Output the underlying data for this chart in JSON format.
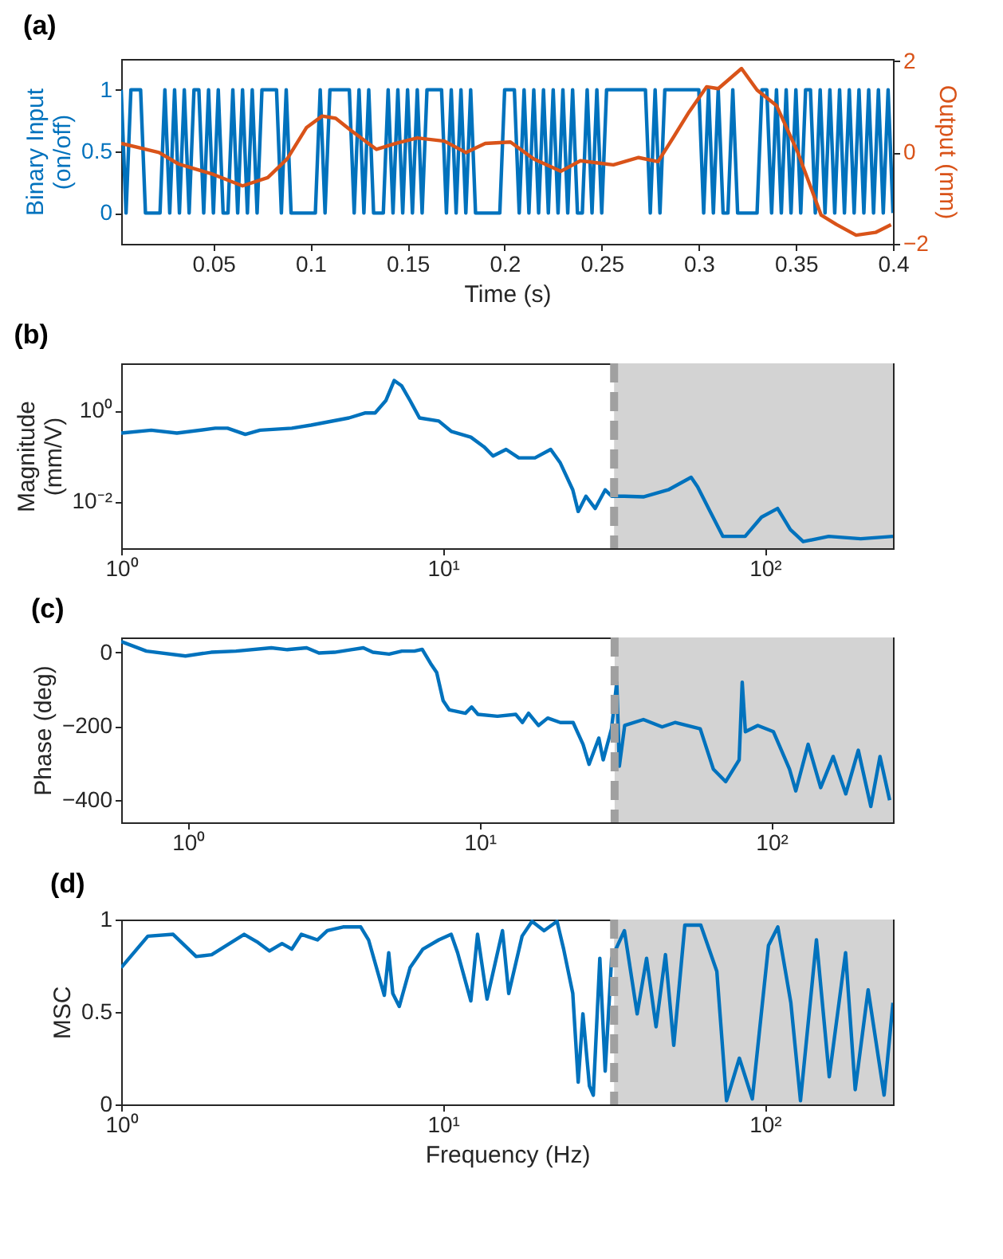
{
  "chart_data": [
    {
      "type": "line",
      "title": "(a)",
      "xlabel": "Time (s)",
      "ylabel": "Binary Input (on/off)",
      "y2label": "Output (mm)",
      "xlim": [
        0.0025,
        0.4
      ],
      "xticks": [
        0.05,
        0.1,
        0.15,
        0.2,
        0.25,
        0.3,
        0.35,
        0.4
      ],
      "ylim": [
        -0.25,
        1.25
      ],
      "yticks": [
        0,
        0.5,
        1
      ],
      "y2lim": [
        -2,
        2.05
      ],
      "y2ticks": [
        -2,
        0,
        2
      ],
      "series": [
        {
          "color": "#0072bd",
          "x": [
            0.0025,
            0.005,
            0.0075,
            0.01,
            0.0125,
            0.015,
            0.0175,
            0.02,
            0.0225,
            0.025,
            0.0275,
            0.03,
            0.0325,
            0.035,
            0.0375,
            0.04,
            0.0425,
            0.045,
            0.0475,
            0.05,
            0.0525,
            0.055,
            0.0575,
            0.06,
            0.0625,
            0.065,
            0.0675,
            0.07,
            0.0725,
            0.075,
            0.0775,
            0.08,
            0.0825,
            0.085,
            0.0875,
            0.09,
            0.0925,
            0.095,
            0.0975,
            0.1,
            0.1025,
            0.105,
            0.1075,
            0.11,
            0.1125,
            0.115,
            0.1175,
            0.12,
            0.1225,
            0.125,
            0.1275,
            0.13,
            0.1325,
            0.135,
            0.1375,
            0.14,
            0.1425,
            0.145,
            0.1475,
            0.15,
            0.1525,
            0.155,
            0.1575,
            0.16,
            0.1625,
            0.165,
            0.1675,
            0.17,
            0.1725,
            0.175,
            0.1775,
            0.18,
            0.1825,
            0.185,
            0.1875,
            0.19,
            0.1925,
            0.195,
            0.1975,
            0.2,
            0.2025,
            0.205,
            0.2075,
            0.21,
            0.2125,
            0.215,
            0.2175,
            0.22,
            0.2225,
            0.225,
            0.2275,
            0.23,
            0.2325,
            0.235,
            0.2375,
            0.24,
            0.2425,
            0.245,
            0.2475,
            0.25,
            0.2525,
            0.255,
            0.2575,
            0.26,
            0.2625,
            0.265,
            0.2675,
            0.27,
            0.2725,
            0.275,
            0.2775,
            0.28,
            0.2825,
            0.285,
            0.2875,
            0.29,
            0.2925,
            0.295,
            0.2975,
            0.3,
            0.3025,
            0.305,
            0.3075,
            0.31,
            0.3125,
            0.315,
            0.3175,
            0.32,
            0.3225,
            0.325,
            0.3275,
            0.33,
            0.3325,
            0.335,
            0.3375,
            0.34,
            0.3425,
            0.345,
            0.3475,
            0.35,
            0.3525,
            0.355,
            0.3575,
            0.36,
            0.3625,
            0.365,
            0.3675,
            0.37,
            0.3725,
            0.375,
            0.3775,
            0.38,
            0.3825,
            0.385,
            0.3875,
            0.39,
            0.3925,
            0.395,
            0.3975,
            0.4
          ],
          "values": [
            1,
            0,
            1,
            1,
            1,
            0,
            0,
            0,
            0,
            1,
            0,
            1,
            0,
            1,
            0,
            1,
            1,
            0,
            1,
            0,
            1,
            0,
            0,
            1,
            0,
            1,
            0,
            1,
            0,
            1,
            1,
            1,
            1,
            0,
            1,
            0,
            0,
            0,
            0,
            0,
            0,
            1,
            0,
            1,
            1,
            1,
            1,
            1,
            0,
            1,
            0,
            1,
            0,
            0,
            0,
            1,
            0,
            1,
            0,
            1,
            0,
            1,
            0,
            1,
            1,
            1,
            1,
            0,
            1,
            0,
            1,
            0,
            1,
            0,
            0,
            0,
            0,
            0,
            0,
            1,
            1,
            1,
            0,
            1,
            0,
            1,
            0,
            1,
            0,
            1,
            0,
            1,
            0,
            1,
            0,
            0,
            1,
            0,
            1,
            0,
            1,
            1,
            1,
            1,
            1,
            1,
            1,
            1,
            1,
            0,
            1,
            0,
            1,
            1,
            1,
            1,
            1,
            1,
            1,
            1,
            0,
            1,
            0,
            1,
            0,
            0,
            1,
            0,
            0,
            0,
            0,
            0,
            1,
            1,
            0,
            1,
            0,
            1,
            0,
            1,
            0,
            1,
            1,
            0,
            1,
            0,
            1,
            0,
            1,
            0,
            1,
            0,
            1,
            0,
            1,
            0,
            1,
            0,
            1,
            0
          ]
        },
        {
          "color": "#d95319",
          "axis": "y2",
          "x": [
            0.0025,
            0.022,
            0.032,
            0.05,
            0.065,
            0.078,
            0.088,
            0.098,
            0.106,
            0.113,
            0.121,
            0.134,
            0.144,
            0.155,
            0.169,
            0.18,
            0.19,
            0.203,
            0.215,
            0.229,
            0.239,
            0.256,
            0.269,
            0.279,
            0.287,
            0.295,
            0.304,
            0.31,
            0.322,
            0.33,
            0.34,
            0.351,
            0.363,
            0.371,
            0.381,
            0.391,
            0.399
          ],
          "values": [
            0.2,
            0.0,
            -0.25,
            -0.48,
            -0.73,
            -0.55,
            -0.14,
            0.55,
            0.8,
            0.75,
            0.48,
            0.07,
            0.2,
            0.32,
            0.25,
            0.0,
            0.2,
            0.23,
            -0.14,
            -0.41,
            -0.18,
            -0.27,
            -0.11,
            -0.2,
            0.34,
            0.89,
            1.44,
            1.4,
            1.84,
            1.37,
            1.03,
            0.0,
            -1.37,
            -1.58,
            -1.81,
            -1.75,
            -1.58
          ]
        }
      ]
    },
    {
      "type": "line",
      "title": "(b)",
      "ylabel": "Magnitude (mm/V)",
      "log": "xy",
      "xlim": [
        1,
        250
      ],
      "xticks": [
        {
          "value": 1,
          "label": "10⁰"
        },
        {
          "value": 10,
          "label": "10¹"
        },
        {
          "value": 100,
          "label": "10²"
        }
      ],
      "ylim": [
        0.00093,
        11
      ],
      "yticks": [
        {
          "value": 0.01,
          "label": "10⁻²"
        },
        {
          "value": 1,
          "label": "10⁰"
        }
      ],
      "bands": [
        {
          "axis": "x",
          "from": 34,
          "to": 250,
          "color": "#d3d3d3"
        }
      ],
      "ref_lines": [
        {
          "axis": "x",
          "value": 34,
          "color": "#a0a0a0",
          "line_style": "dashed"
        }
      ],
      "series": [
        {
          "color": "#0072bd",
          "x": [
            1,
            1.24,
            1.49,
            1.96,
            2.14,
            2.43,
            2.7,
            3.39,
            3.89,
            5.1,
            5.74,
            6.15,
            6.64,
            7.05,
            7.44,
            7.9,
            8.45,
            9.7,
            10.6,
            12.2,
            13.4,
            14.3,
            15.7,
            17.2,
            19.3,
            21.6,
            23.1,
            25.3,
            26.3,
            27.8,
            29.7,
            31.9,
            33.4,
            36.6,
            41.9,
            50.1,
            59,
            61.8,
            67.6,
            74,
            86.8,
            97.6,
            109.5,
            120,
            131.5,
            157.9,
            198.5,
            250
          ],
          "values": [
            0.32,
            0.37,
            0.32,
            0.41,
            0.41,
            0.3,
            0.37,
            0.41,
            0.48,
            0.69,
            0.89,
            0.89,
            1.66,
            4.6,
            3.5,
            1.66,
            0.69,
            0.59,
            0.35,
            0.26,
            0.16,
            0.1,
            0.14,
            0.091,
            0.091,
            0.14,
            0.072,
            0.018,
            0.006,
            0.013,
            0.007,
            0.018,
            0.013,
            0.013,
            0.0126,
            0.018,
            0.034,
            0.021,
            0.006,
            0.0017,
            0.0017,
            0.0045,
            0.007,
            0.0024,
            0.0013,
            0.0017,
            0.0015,
            0.0017
          ]
        }
      ]
    },
    {
      "type": "line",
      "title": "(c)",
      "ylabel": "Phase (deg)",
      "log": "x",
      "xlim": [
        0.59,
        261
      ],
      "xticks": [
        {
          "value": 1,
          "label": "10⁰"
        },
        {
          "value": 10,
          "label": "10¹"
        },
        {
          "value": 100,
          "label": "10²"
        }
      ],
      "ylim": [
        -460,
        40
      ],
      "yticks": [
        -400,
        -200,
        0
      ],
      "bands": [
        {
          "axis": "x",
          "from": 29,
          "to": 261,
          "color": "#d3d3d3"
        }
      ],
      "ref_lines": [
        {
          "axis": "x",
          "value": 29,
          "color": "#a0a0a0",
          "line_style": "dashed"
        }
      ],
      "series": [
        {
          "color": "#0072bd",
          "x": [
            0.59,
            0.72,
            0.98,
            1.2,
            1.46,
            1.93,
            2.19,
            2.55,
            2.81,
            3.18,
            3.62,
            3.99,
            4.3,
            4.89,
            5.41,
            5.97,
            6.35,
            6.78,
            7.12,
            7.49,
            7.87,
            8.93,
            9.38,
            9.86,
            11.5,
            13.3,
            14,
            14.7,
            15.9,
            17.1,
            18.9,
            20.9,
            22.6,
            23.7,
            25.6,
            26.5,
            28.3,
            29.5,
            30.1,
            31.4,
            36.4,
            42.2,
            46.7,
            57,
            63.2,
            69.7,
            77.5,
            79.4,
            81.4,
            89.8,
            101.6,
            115.3,
            121.2,
            133.6,
            147.5,
            162.8,
            179.8,
            198.5,
            219.1,
            235.6,
            254.2
          ],
          "values": [
            29,
            3,
            -10,
            0,
            3,
            12,
            7,
            12,
            -2,
            0,
            7,
            12,
            0,
            -5,
            3,
            3,
            8,
            -30,
            -55,
            -131,
            -156,
            -165,
            -148,
            -168,
            -173,
            -168,
            -190,
            -165,
            -198,
            -178,
            -190,
            -190,
            -249,
            -303,
            -232,
            -291,
            -207,
            -81,
            -308,
            -198,
            -182,
            -202,
            -190,
            -207,
            -316,
            -350,
            -291,
            -81,
            -215,
            -198,
            -215,
            -316,
            -375,
            -249,
            -366,
            -282,
            -383,
            -265,
            -417,
            -282,
            -400
          ]
        }
      ]
    },
    {
      "type": "line",
      "title": "(d)",
      "xlabel": "Frequency (Hz)",
      "ylabel": "MSC",
      "log": "x",
      "xlim": [
        1,
        250
      ],
      "xticks": [
        {
          "value": 1,
          "label": "10⁰"
        },
        {
          "value": 10,
          "label": "10¹"
        },
        {
          "value": 100,
          "label": "10²"
        }
      ],
      "ylim": [
        0,
        1
      ],
      "yticks": [
        0,
        0.5,
        1
      ],
      "bands": [
        {
          "axis": "x",
          "from": 34,
          "to": 250,
          "color": "#d3d3d3"
        }
      ],
      "ref_lines": [
        {
          "axis": "x",
          "value": 34,
          "color": "#a0a0a0",
          "line_style": "dashed"
        }
      ],
      "series": [
        {
          "color": "#0072bd",
          "x": [
            1,
            1.21,
            1.45,
            1.71,
            1.91,
            2.41,
            2.64,
            2.89,
            3.16,
            3.39,
            3.63,
            4.07,
            4.37,
            4.89,
            5.55,
            5.87,
            6.57,
            6.78,
            6.98,
            7.31,
            7.9,
            8.66,
            9.7,
            10.6,
            11.1,
            12.2,
            12.8,
            13.7,
            15.3,
            16,
            17.6,
            18.9,
            20.6,
            22.6,
            23.7,
            25.3,
            26.3,
            27.2,
            28.5,
            29.3,
            30.7,
            31.9,
            33.4,
            36.6,
            40.1,
            42.9,
            45.9,
            49.1,
            52.1,
            56.4,
            63.2,
            70.9,
            76,
            83.3,
            91.4,
            102.6,
            109.7,
            120.4,
            129,
            144.6,
            158.5,
            178.1,
            190.8,
            209.3,
            234.6,
            250
          ],
          "values": [
            0.74,
            0.91,
            0.92,
            0.8,
            0.81,
            0.92,
            0.88,
            0.83,
            0.87,
            0.84,
            0.92,
            0.89,
            0.94,
            0.96,
            0.96,
            0.89,
            0.59,
            0.82,
            0.6,
            0.53,
            0.74,
            0.84,
            0.89,
            0.92,
            0.82,
            0.56,
            0.92,
            0.57,
            0.94,
            0.6,
            0.91,
            0.99,
            0.94,
            0.99,
            0.84,
            0.6,
            0.12,
            0.49,
            0.1,
            0.05,
            0.79,
            0.18,
            0.79,
            0.94,
            0.49,
            0.79,
            0.42,
            0.81,
            0.32,
            0.97,
            0.97,
            0.72,
            0.02,
            0.25,
            0.03,
            0.86,
            0.96,
            0.55,
            0.02,
            0.89,
            0.15,
            0.82,
            0.08,
            0.62,
            0.05,
            0.55
          ]
        }
      ]
    }
  ]
}
